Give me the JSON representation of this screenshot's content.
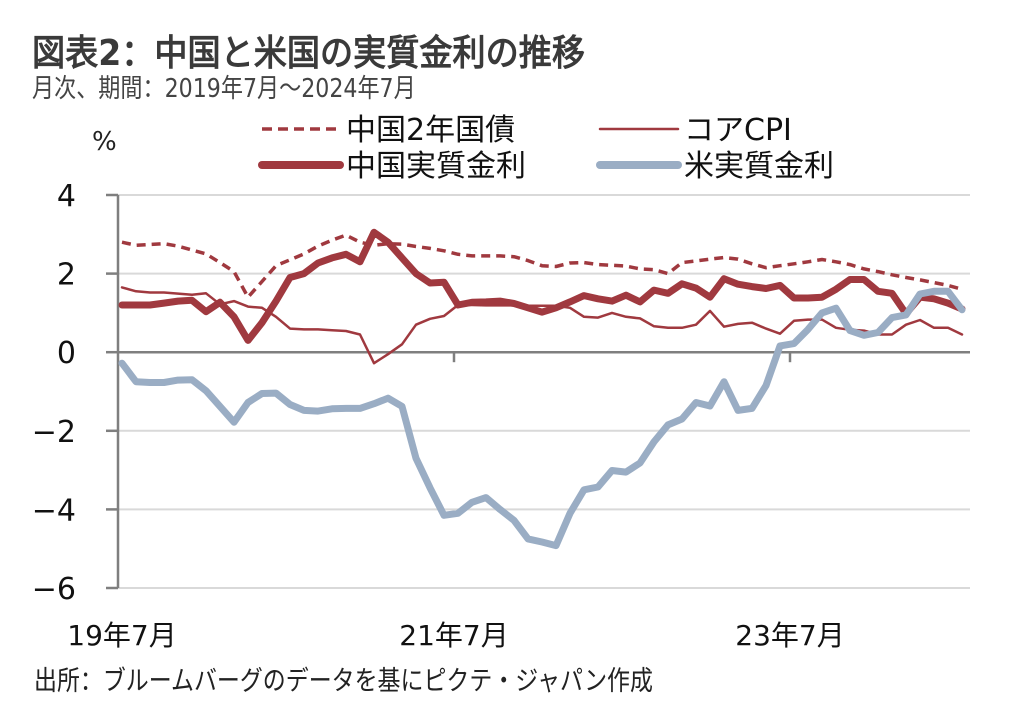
{
  "header": {
    "title": "図表2：中国と米国の実質金利の推移",
    "subtitle": "月次、期間：2019年7月～2024年7月"
  },
  "footer": {
    "source": "出所：ブルームバーグのデータを基にピクテ・ジャパン作成"
  },
  "colors": {
    "red": "#A0393F",
    "blue_gray": "#9AADC4",
    "axis": "#7f7f7f",
    "grid": "#d9d9d9"
  },
  "chart_data": {
    "type": "line",
    "title": "中国と米国の実質金利の推移",
    "ylabel": "%",
    "xlabel": "",
    "ylim": [
      -6,
      4
    ],
    "yticks": [
      4,
      2,
      0,
      -2,
      -4,
      -6
    ],
    "ytick_labels": [
      "4",
      "2",
      "0",
      "−2",
      "−4",
      "−6"
    ],
    "grid": true,
    "legend_position": "top",
    "x_start": "2019-07",
    "x_end": "2024-07",
    "frequency": "monthly",
    "xtick_labels": [
      {
        "label": "19年7月",
        "index": 0
      },
      {
        "label": "21年7月",
        "index": 24
      },
      {
        "label": "23年7月",
        "index": 48
      }
    ],
    "series": [
      {
        "name": "中国2年国債",
        "style": "dashed",
        "color": "#A0393F",
        "weight": "medium",
        "values": [
          2.8,
          2.72,
          2.74,
          2.76,
          2.7,
          2.6,
          2.5,
          2.28,
          2.05,
          1.4,
          1.8,
          2.2,
          2.35,
          2.5,
          2.7,
          2.85,
          2.98,
          2.8,
          2.72,
          2.76,
          2.75,
          2.69,
          2.64,
          2.58,
          2.49,
          2.45,
          2.45,
          2.45,
          2.43,
          2.33,
          2.2,
          2.18,
          2.27,
          2.28,
          2.23,
          2.21,
          2.19,
          2.12,
          2.1,
          2.0,
          2.28,
          2.32,
          2.37,
          2.41,
          2.37,
          2.25,
          2.15,
          2.2,
          2.25,
          2.3,
          2.36,
          2.3,
          2.23,
          2.12,
          2.05,
          1.97,
          1.9,
          1.84,
          1.77,
          1.7,
          1.6
        ]
      },
      {
        "name": "コアCPI",
        "style": "solid",
        "color": "#A0393F",
        "weight": "thin",
        "values": [
          1.65,
          1.55,
          1.52,
          1.52,
          1.49,
          1.46,
          1.5,
          1.22,
          1.3,
          1.16,
          1.13,
          0.9,
          0.6,
          0.58,
          0.58,
          0.56,
          0.54,
          0.45,
          -0.28,
          -0.05,
          0.2,
          0.7,
          0.85,
          0.92,
          1.2,
          1.2,
          1.19,
          1.19,
          1.19,
          1.18,
          1.18,
          1.18,
          1.13,
          0.9,
          0.88,
          1.0,
          0.9,
          0.86,
          0.66,
          0.62,
          0.62,
          0.7,
          1.05,
          0.65,
          0.72,
          0.75,
          0.6,
          0.47,
          0.8,
          0.83,
          0.83,
          0.62,
          0.57,
          0.55,
          0.45,
          0.45,
          0.7,
          0.82,
          0.62,
          0.62,
          0.45
        ]
      },
      {
        "name": "中国実質金利",
        "style": "solid",
        "color": "#A0393F",
        "weight": "thick",
        "values": [
          1.2,
          1.2,
          1.2,
          1.25,
          1.3,
          1.32,
          1.03,
          1.27,
          0.9,
          0.3,
          0.75,
          1.3,
          1.9,
          2.0,
          2.27,
          2.4,
          2.49,
          2.3,
          3.05,
          2.8,
          2.4,
          2.0,
          1.76,
          1.78,
          1.2,
          1.27,
          1.28,
          1.3,
          1.24,
          1.13,
          1.02,
          1.13,
          1.28,
          1.44,
          1.36,
          1.3,
          1.45,
          1.28,
          1.58,
          1.5,
          1.74,
          1.63,
          1.4,
          1.87,
          1.73,
          1.67,
          1.62,
          1.7,
          1.38,
          1.38,
          1.4,
          1.6,
          1.85,
          1.85,
          1.55,
          1.5,
          0.98,
          1.4,
          1.36,
          1.25,
          1.1
        ]
      },
      {
        "name": "米実質金利",
        "style": "solid",
        "color": "#9AADC4",
        "weight": "thick",
        "values": [
          -0.28,
          -0.75,
          -0.77,
          -0.77,
          -0.71,
          -0.7,
          -0.98,
          -1.38,
          -1.78,
          -1.28,
          -1.05,
          -1.04,
          -1.33,
          -1.48,
          -1.5,
          -1.44,
          -1.43,
          -1.43,
          -1.31,
          -1.17,
          -1.38,
          -2.7,
          -3.45,
          -4.15,
          -4.1,
          -3.82,
          -3.7,
          -4.0,
          -4.28,
          -4.75,
          -4.83,
          -4.92,
          -4.1,
          -3.5,
          -3.43,
          -3.01,
          -3.05,
          -2.82,
          -2.28,
          -1.85,
          -1.7,
          -1.28,
          -1.37,
          -0.75,
          -1.48,
          -1.43,
          -0.85,
          0.16,
          0.22,
          0.58,
          1.0,
          1.12,
          0.55,
          0.43,
          0.5,
          0.88,
          0.95,
          1.48,
          1.55,
          1.55,
          1.08
        ]
      }
    ],
    "legend": [
      {
        "label": "中国2年国債",
        "series": 0
      },
      {
        "label": "コアCPI",
        "series": 1
      },
      {
        "label": "中国実質金利",
        "series": 2
      },
      {
        "label": "米実質金利",
        "series": 3
      }
    ]
  }
}
